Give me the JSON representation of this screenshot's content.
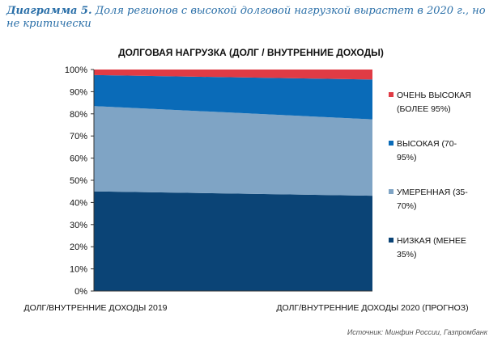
{
  "caption": {
    "number": "Диаграмма 5.",
    "text": "Доля регионов с высокой долговой нагрузкой вырастет в 2020 г., но не критически"
  },
  "source": "Источник: Минфин России, Газпромбанк",
  "chart_data": {
    "type": "area",
    "stacked": true,
    "title": "ДОЛГОВАЯ НАГРУЗКА (ДОЛГ / ВНУТРЕННИЕ ДОХОДЫ)",
    "categories": [
      "ДОЛГ/ВНУТРЕННИЕ ДОХОДЫ 2019",
      "ДОЛГ/ВНУТРЕННИЕ ДОХОДЫ 2020 (ПРОГНОЗ)"
    ],
    "ylim": [
      0,
      100
    ],
    "yticks": [
      "0%",
      "10%",
      "20%",
      "30%",
      "40%",
      "50%",
      "60%",
      "70%",
      "80%",
      "90%",
      "100%"
    ],
    "grid": false,
    "legend_position": "right",
    "series": [
      {
        "name": "НИЗКАЯ (МЕНЕЕ 35%)",
        "values": [
          45,
          43
        ],
        "color": "#0b4476"
      },
      {
        "name": "УМЕРЕННАЯ (35-70%)",
        "values": [
          38.5,
          34.5
        ],
        "color": "#7fa4c5"
      },
      {
        "name": "ВЫСОКАЯ (70-95%)",
        "values": [
          14,
          18
        ],
        "color": "#0a6bb8"
      },
      {
        "name": "ОЧЕНЬ ВЫСОКАЯ (БОЛЕЕ 95%)",
        "values": [
          2.5,
          4.5
        ],
        "color": "#e03b45"
      }
    ]
  }
}
